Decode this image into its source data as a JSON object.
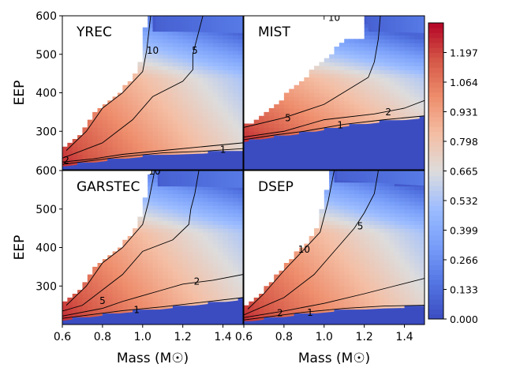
{
  "chart_data": {
    "type": "heatmap",
    "colormap": "coolwarm",
    "xlabel": "Mass (M☉)",
    "ylabel": "EEP",
    "xlim": [
      0.6,
      1.5
    ],
    "ylim": [
      200,
      600
    ],
    "xticks": [
      "0.6",
      "0.8",
      "1.0",
      "1.2",
      "1.4"
    ],
    "yticks_top": [
      "300",
      "400",
      "500",
      "600"
    ],
    "yticks_bottom": [
      "300",
      "400",
      "500",
      "600"
    ],
    "colorbar": {
      "range": [
        0.0,
        1.33
      ],
      "ticks": [
        "0.000",
        "0.133",
        "0.266",
        "0.399",
        "0.532",
        "0.665",
        "0.798",
        "0.931",
        "1.064",
        "1.197"
      ]
    },
    "contour_levels": [
      "1",
      "2",
      "5",
      "10"
    ],
    "panels": [
      {
        "title": "YREC",
        "valid_max_eep": [
          [
            0.6,
            600
          ],
          [
            1.05,
            600
          ],
          [
            1.06,
            560
          ],
          [
            1.5,
            555
          ]
        ],
        "contours": [
          {
            "level": "10",
            "points": [
              [
                1.04,
                600
              ],
              [
                1.02,
                510
              ],
              [
                1.0,
                455
              ],
              [
                0.9,
                400
              ],
              [
                0.8,
                360
              ],
              [
                0.72,
                300
              ],
              [
                0.62,
                250
              ]
            ]
          },
          {
            "level": "5",
            "points": [
              [
                1.3,
                600
              ],
              [
                1.27,
                540
              ],
              [
                1.25,
                500
              ],
              [
                1.25,
                460
              ],
              [
                1.2,
                430
              ],
              [
                1.05,
                390
              ],
              [
                0.95,
                330
              ],
              [
                0.8,
                270
              ],
              [
                0.6,
                230
              ]
            ]
          },
          {
            "level": "2",
            "points": [
              [
                1.5,
                270
              ],
              [
                1.3,
                260
              ],
              [
                1.1,
                250
              ],
              [
                0.9,
                240
              ],
              [
                0.75,
                228
              ],
              [
                0.6,
                220
              ]
            ]
          },
          {
            "level": "1",
            "points": [
              [
                1.5,
                255
              ],
              [
                1.3,
                248
              ],
              [
                1.1,
                244
              ],
              [
                0.9,
                234
              ],
              [
                0.75,
                224
              ],
              [
                0.6,
                214
              ]
            ]
          }
        ],
        "contour_labels": [
          {
            "level": "10",
            "mass": 1.05,
            "eep": 510
          },
          {
            "level": "5",
            "mass": 1.26,
            "eep": 510
          },
          {
            "level": "1",
            "mass": 1.4,
            "eep": 252
          },
          {
            "level": "2",
            "mass": 0.62,
            "eep": 225
          }
        ]
      },
      {
        "title": "MIST",
        "valid_max_eep": [
          [
            0.6,
            600
          ],
          [
            1.2,
            600
          ],
          [
            1.22,
            560
          ],
          [
            1.5,
            555
          ]
        ],
        "contours": [
          {
            "level": "10",
            "points": [
              [
                1.0,
                600
              ],
              [
                1.0,
                590
              ]
            ]
          },
          {
            "level": "5",
            "points": [
              [
                1.28,
                600
              ],
              [
                1.27,
                540
              ],
              [
                1.25,
                480
              ],
              [
                1.22,
                440
              ],
              [
                1.0,
                370
              ],
              [
                0.8,
                335
              ],
              [
                0.6,
                310
              ]
            ]
          },
          {
            "level": "2",
            "points": [
              [
                1.5,
                380
              ],
              [
                1.4,
                360
              ],
              [
                1.25,
                345
              ],
              [
                1.0,
                330
              ],
              [
                0.8,
                300
              ],
              [
                0.6,
                285
              ]
            ]
          },
          {
            "level": "1",
            "points": [
              [
                1.5,
                340
              ],
              [
                1.3,
                330
              ],
              [
                1.1,
                318
              ],
              [
                0.9,
                300
              ],
              [
                0.75,
                290
              ],
              [
                0.6,
                278
              ]
            ]
          }
        ],
        "contour_labels": [
          {
            "level": "10",
            "mass": 1.05,
            "eep": 595
          },
          {
            "level": "5",
            "mass": 0.82,
            "eep": 334
          },
          {
            "level": "2",
            "mass": 1.32,
            "eep": 350
          },
          {
            "level": "1",
            "mass": 1.08,
            "eep": 316
          }
        ]
      },
      {
        "title": "GARSTEC",
        "valid_max_eep": [
          [
            0.6,
            600
          ],
          [
            1.07,
            600
          ],
          [
            1.08,
            560
          ],
          [
            1.5,
            555
          ]
        ],
        "contours": [
          {
            "level": "10",
            "points": [
              [
                1.06,
                600
              ],
              [
                1.03,
                520
              ],
              [
                1.0,
                460
              ],
              [
                0.9,
                400
              ],
              [
                0.8,
                360
              ],
              [
                0.72,
                300
              ],
              [
                0.62,
                250
              ]
            ]
          },
          {
            "level": "5",
            "points": [
              [
                1.28,
                600
              ],
              [
                1.26,
                540
              ],
              [
                1.24,
                500
              ],
              [
                1.23,
                460
              ],
              [
                1.15,
                420
              ],
              [
                1.0,
                390
              ],
              [
                0.9,
                330
              ],
              [
                0.8,
                290
              ],
              [
                0.7,
                250
              ],
              [
                0.6,
                235
              ]
            ]
          },
          {
            "level": "2",
            "points": [
              [
                1.5,
                330
              ],
              [
                1.35,
                315
              ],
              [
                1.2,
                305
              ],
              [
                1.1,
                290
              ],
              [
                1.0,
                275
              ],
              [
                0.9,
                260
              ],
              [
                0.8,
                242
              ],
              [
                0.6,
                222
              ]
            ]
          },
          {
            "level": "1",
            "points": [
              [
                1.5,
                270
              ],
              [
                1.3,
                258
              ],
              [
                1.1,
                246
              ],
              [
                0.9,
                236
              ],
              [
                0.75,
                226
              ],
              [
                0.6,
                216
              ]
            ]
          }
        ],
        "contour_labels": [
          {
            "level": "10",
            "mass": 1.06,
            "eep": 598
          },
          {
            "level": "5",
            "mass": 0.8,
            "eep": 262
          },
          {
            "level": "2",
            "mass": 1.27,
            "eep": 312
          },
          {
            "level": "1",
            "mass": 0.97,
            "eep": 238
          }
        ]
      },
      {
        "title": "DSEP",
        "valid_max_eep": [
          [
            0.6,
            600
          ],
          [
            1.05,
            600
          ],
          [
            1.05,
            575
          ],
          [
            1.5,
            560
          ]
        ],
        "contours": [
          {
            "level": "10",
            "points": [
              [
                1.05,
                600
              ],
              [
                1.02,
                520
              ],
              [
                0.98,
                440
              ],
              [
                0.9,
                395
              ],
              [
                0.8,
                340
              ],
              [
                0.7,
                280
              ],
              [
                0.62,
                240
              ]
            ]
          },
          {
            "level": "5",
            "points": [
              [
                1.27,
                600
              ],
              [
                1.25,
                540
              ],
              [
                1.2,
                490
              ],
              [
                1.15,
                450
              ],
              [
                1.05,
                390
              ],
              [
                0.95,
                330
              ],
              [
                0.8,
                270
              ],
              [
                0.6,
                225
              ]
            ]
          },
          {
            "level": "2",
            "points": [
              [
                1.5,
                320
              ],
              [
                1.35,
                300
              ],
              [
                1.2,
                280
              ],
              [
                1.0,
                255
              ],
              [
                0.8,
                235
              ],
              [
                0.6,
                218
              ]
            ]
          },
          {
            "level": "1",
            "points": [
              [
                1.5,
                250
              ],
              [
                1.3,
                248
              ],
              [
                1.1,
                242
              ],
              [
                0.9,
                232
              ],
              [
                0.75,
                222
              ],
              [
                0.6,
                212
              ]
            ]
          }
        ],
        "contour_labels": [
          {
            "level": "10",
            "mass": 0.9,
            "eep": 395
          },
          {
            "level": "5",
            "mass": 1.18,
            "eep": 455
          },
          {
            "level": "2",
            "mass": 0.78,
            "eep": 230
          },
          {
            "level": "1",
            "mass": 0.93,
            "eep": 231
          }
        ]
      }
    ]
  }
}
